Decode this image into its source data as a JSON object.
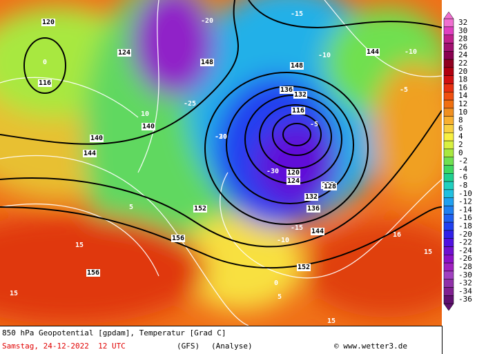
{
  "map": {
    "colorbar": {
      "ticks": [
        32,
        30,
        28,
        26,
        24,
        22,
        20,
        18,
        16,
        14,
        12,
        10,
        8,
        6,
        4,
        2,
        0,
        -2,
        -4,
        -6,
        -8,
        -10,
        -12,
        -14,
        -16,
        -18,
        -20,
        -22,
        -24,
        -26,
        -28,
        -30,
        -32,
        -34,
        -36
      ],
      "colors": [
        "#f070d0",
        "#e040c0",
        "#c0208c",
        "#a01070",
        "#880050",
        "#900020",
        "#b00010",
        "#d01010",
        "#e83010",
        "#f05010",
        "#f07010",
        "#f09020",
        "#f8b030",
        "#f8d040",
        "#f8f040",
        "#d8f040",
        "#a8e840",
        "#70e050",
        "#40d860",
        "#20d090",
        "#20d0c0",
        "#20c0e0",
        "#20a0f0",
        "#2080f0",
        "#2060f0",
        "#2040f0",
        "#3020e8",
        "#5010e0",
        "#7010d0",
        "#8c10c8",
        "#a020c0",
        "#a040c0",
        "#9030a8",
        "#802090",
        "#601070"
      ]
    },
    "contour_labels": [
      "120",
      "116",
      "124",
      "0",
      "10",
      "140",
      "144",
      "148",
      "152",
      "156",
      "136",
      "132",
      "128",
      "-5",
      "-10",
      "-15",
      "-20",
      "-25",
      "-30",
      "15",
      "5",
      "148",
      "152",
      "156",
      "144",
      "140",
      "-10",
      "-15",
      "15",
      "15",
      "16",
      "116",
      "120",
      "124",
      "128",
      "132",
      "136",
      "144",
      "-10",
      "-5",
      "0",
      "5",
      "15",
      "-20",
      "-30"
    ],
    "footer": {
      "title": "850 hPa Geopotential [gpdam], Temperatur [Grad C]",
      "date": "Samstag, 24-12-2022  12 UTC",
      "model": "(GFS)",
      "run": "(Analyse)",
      "credit": "© www.wetter3.de"
    }
  }
}
